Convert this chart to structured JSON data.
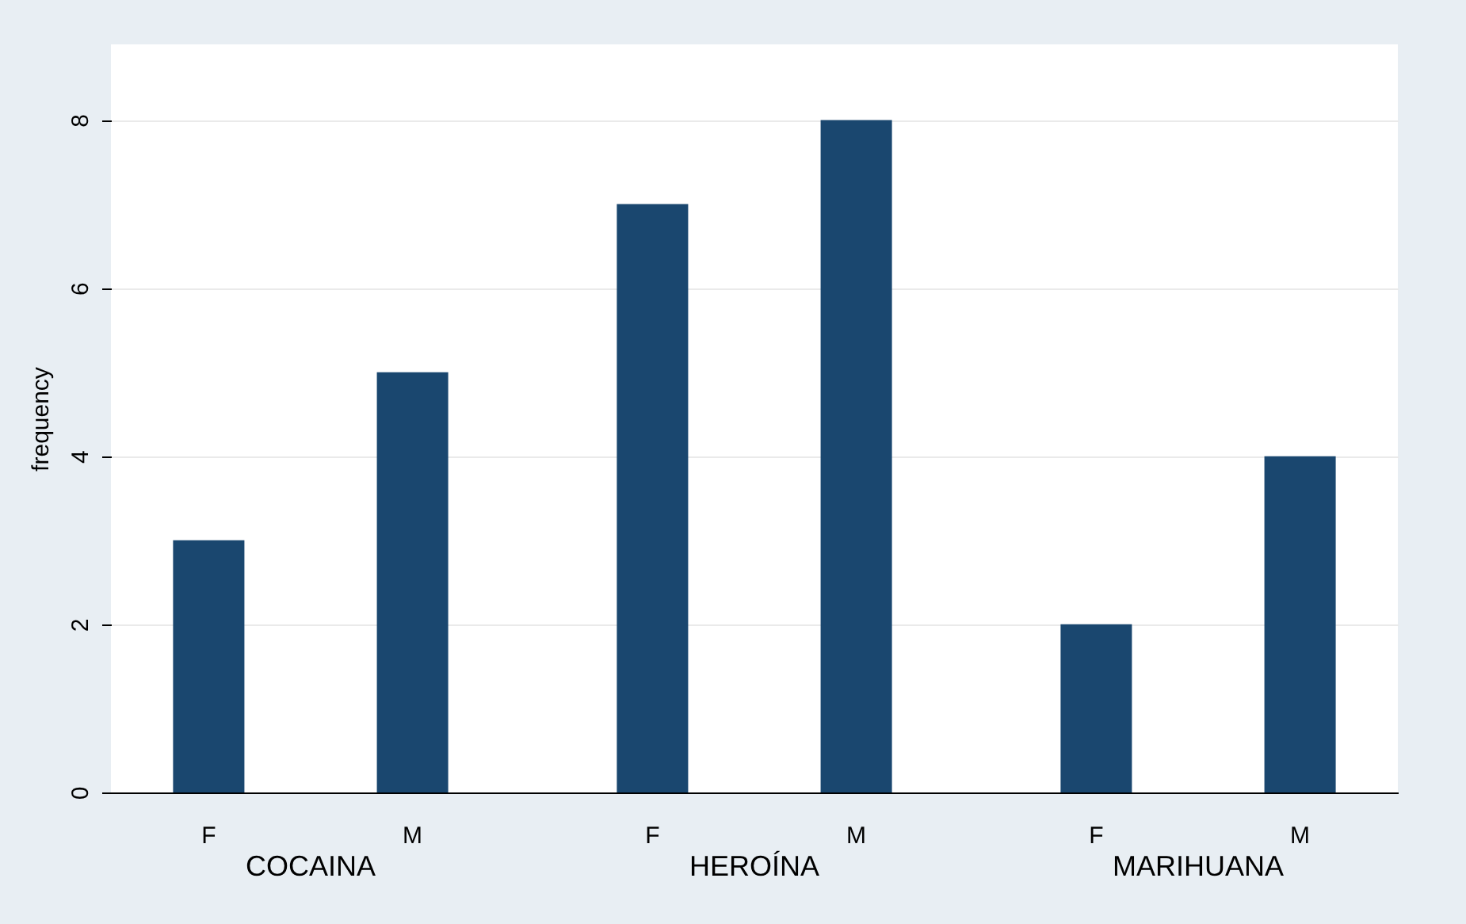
{
  "chart_data": {
    "type": "bar",
    "ylabel": "frequency",
    "categories": [
      "COCAINA",
      "HEROÍNA",
      "MARIHUANA"
    ],
    "series": [
      {
        "name": "F",
        "color": "#1a476f",
        "values": [
          3,
          7,
          2
        ]
      },
      {
        "name": "M",
        "color": "#1a476f",
        "values": [
          5,
          8,
          4
        ]
      }
    ],
    "ylim": [
      0,
      8.9
    ],
    "yticks": [
      0,
      2,
      4,
      6,
      8
    ],
    "grid": "y",
    "legend": false
  }
}
